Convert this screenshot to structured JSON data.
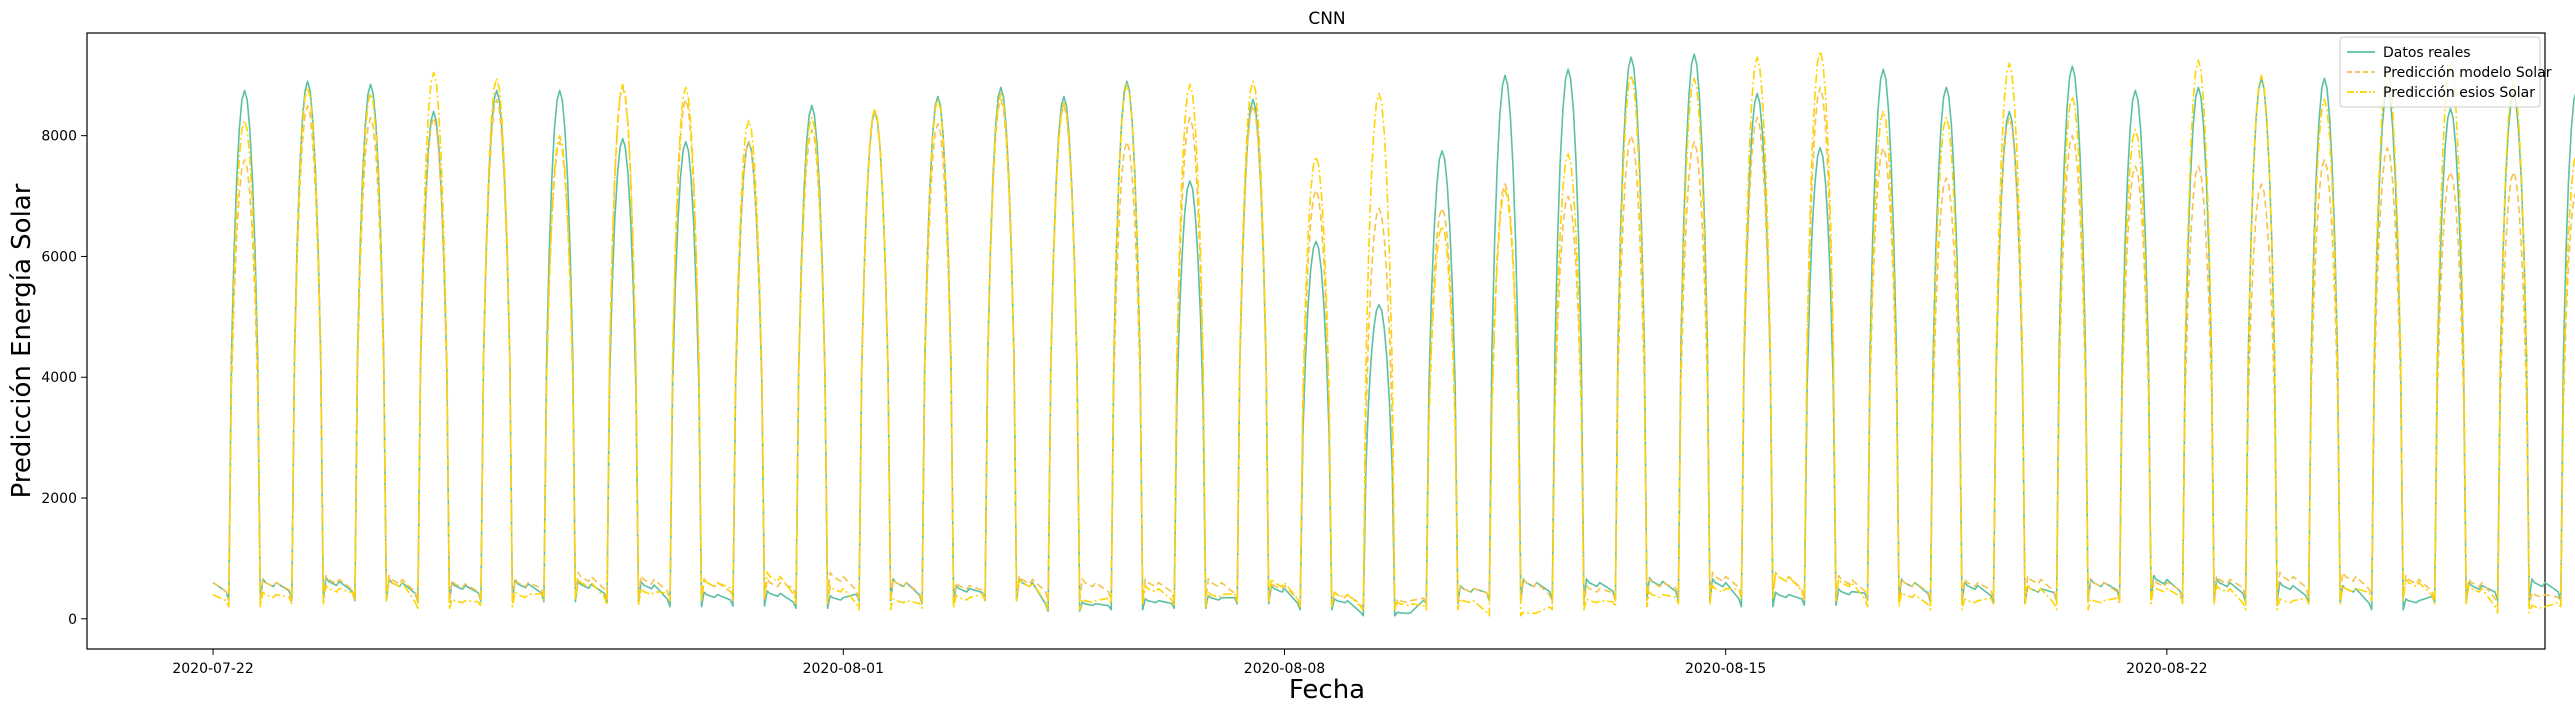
{
  "chart_data": {
    "type": "line",
    "title": "CNN",
    "xlabel": "Fecha",
    "ylabel": "Predicción Energía Solar",
    "xlim": [
      "2020-07-20",
      "2020-08-28"
    ],
    "ylim": [
      -500,
      9700
    ],
    "yticks": [
      0,
      2000,
      4000,
      6000,
      8000
    ],
    "xticks": [
      "2020-07-22",
      "2020-08-01",
      "2020-08-08",
      "2020-08-15",
      "2020-08-22"
    ],
    "legend_position": "top-right",
    "grid": false,
    "start_date": "2020-07-22",
    "series": [
      {
        "name": "Datos reales",
        "color": "#5bc0a4",
        "style": "solid",
        "daily_peak": [
          8750,
          8900,
          8850,
          8400,
          8750,
          8750,
          7950,
          7900,
          7900,
          8500,
          8400,
          8650,
          8800,
          8650,
          8900,
          7250,
          8600,
          6250,
          5200,
          7750,
          9000,
          9100,
          9300,
          9350,
          8700,
          7800,
          9100,
          8800,
          8400,
          9150,
          8750,
          8800,
          8950,
          8950,
          8800,
          8450,
          8700,
          8750
        ],
        "night_level": [
          600,
          620,
          600,
          550,
          580,
          570,
          560,
          400,
          420,
          350,
          600,
          500,
          600,
          250,
          300,
          350,
          500,
          300,
          100,
          500,
          600,
          600,
          620,
          600,
          400,
          450,
          600,
          550,
          500,
          600,
          650,
          600,
          550,
          500,
          300,
          550,
          600,
          600
        ]
      },
      {
        "name": "Predicción modelo Solar",
        "color": "#f6c34a",
        "style": "dashed",
        "daily_peak": [
          7600,
          8500,
          8300,
          8300,
          8600,
          7900,
          8800,
          8600,
          7900,
          8100,
          8400,
          8200,
          8600,
          8500,
          7900,
          8300,
          8500,
          7100,
          6800,
          6800,
          7200,
          7000,
          8000,
          7900,
          8300,
          8800,
          7800,
          7300,
          8300,
          8000,
          7500,
          7500,
          7200,
          7600,
          7800,
          7400,
          7400,
          7100
        ],
        "night_level": [
          600,
          650,
          650,
          580,
          600,
          700,
          650,
          600,
          600,
          700,
          600,
          550,
          650,
          600,
          600,
          600,
          550,
          400,
          300,
          500,
          600,
          500,
          600,
          700,
          700,
          650,
          600,
          600,
          650,
          600,
          600,
          650,
          700,
          700,
          650,
          600,
          400,
          500
        ]
      },
      {
        "name": "Predicción esios Solar",
        "color": "#ffd400",
        "style": "dashdot",
        "daily_peak": [
          8250,
          8800,
          8700,
          9050,
          8950,
          8000,
          8850,
          8800,
          8250,
          8300,
          8450,
          8600,
          8700,
          8550,
          8850,
          8850,
          8900,
          7650,
          8700,
          6500,
          7100,
          7700,
          9000,
          8950,
          9300,
          9400,
          8400,
          8300,
          9200,
          8650,
          8100,
          9250,
          9000,
          8600,
          9100,
          9200,
          8900,
          7700
        ],
        "night_level": [
          400,
          500,
          600,
          300,
          400,
          600,
          450,
          600,
          700,
          500,
          300,
          350,
          600,
          300,
          500,
          400,
          600,
          400,
          250,
          300,
          100,
          300,
          400,
          500,
          700,
          600,
          400,
          300,
          500,
          300,
          500,
          500,
          300,
          500,
          600,
          500,
          200,
          400
        ]
      }
    ]
  }
}
